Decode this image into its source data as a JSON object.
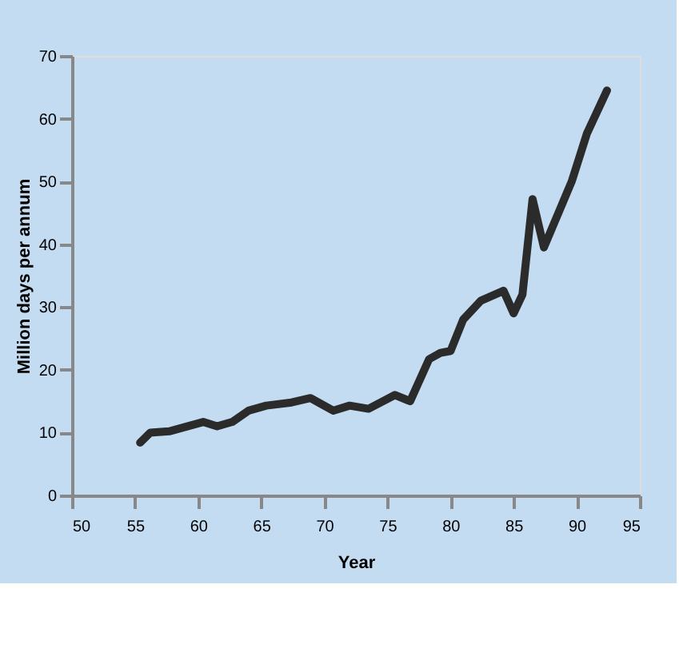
{
  "chart_data": {
    "type": "line",
    "xlabel": "Year",
    "ylabel": "Million days per annum",
    "x": [
      55.4,
      56.2,
      57.7,
      60.4,
      61.5,
      62.7,
      64,
      65.4,
      67.4,
      68.9,
      70.7,
      72,
      73.5,
      75.6,
      76.8,
      78.3,
      79.2,
      80,
      81,
      82.4,
      84.2,
      85,
      85.7,
      86.5,
      87.4,
      89.6,
      90.8,
      92.4
    ],
    "series": [
      {
        "color": "#2b2b2b",
        "values": [
          8.4,
          10,
          10.2,
          11.7,
          11,
          11.7,
          13.5,
          14.3,
          14.8,
          15.5,
          13.5,
          14.3,
          13.8,
          16,
          15,
          21.7,
          22.7,
          23,
          28,
          31,
          32.6,
          29,
          32,
          47.2,
          39.5,
          50,
          57.6,
          64.5
        ]
      }
    ],
    "xlim": [
      50,
      95
    ],
    "xticks": [
      50,
      55,
      60,
      65,
      70,
      75,
      80,
      85,
      90,
      95
    ],
    "ylim": [
      0,
      70
    ],
    "yticks": [
      0,
      10,
      20,
      30,
      40,
      50,
      60,
      70
    ],
    "grid": false,
    "legend": false,
    "marker": "none",
    "line_style": "solid"
  }
}
